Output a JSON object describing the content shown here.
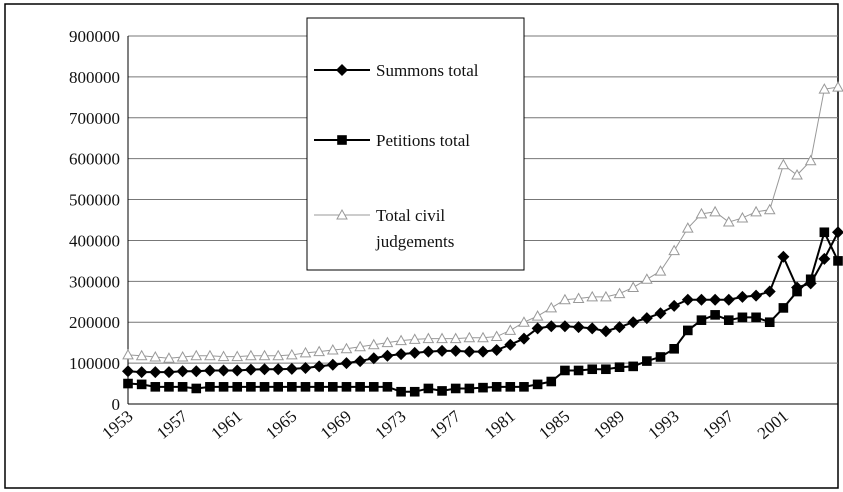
{
  "chart_data": {
    "type": "line",
    "categories": [
      "1953",
      null,
      null,
      null,
      "1957",
      null,
      null,
      null,
      "1961",
      null,
      null,
      null,
      "1965",
      null,
      null,
      null,
      "1969",
      null,
      null,
      null,
      "1973",
      null,
      null,
      null,
      "1977",
      null,
      null,
      null,
      "1981",
      null,
      null,
      null,
      "1985",
      null,
      null,
      null,
      "1989",
      null,
      null,
      null,
      "1993",
      null,
      null,
      null,
      "1997",
      null,
      null,
      null,
      "2001",
      null,
      null,
      null,
      null
    ],
    "series": [
      {
        "name": "Summons total",
        "color": "#000000",
        "marker": "diamond",
        "values": [
          80000,
          78000,
          78000,
          78000,
          80000,
          80000,
          82000,
          82000,
          82000,
          84000,
          85000,
          85000,
          86000,
          88000,
          92000,
          96000,
          100000,
          105000,
          112000,
          118000,
          122000,
          125000,
          128000,
          130000,
          130000,
          128000,
          128000,
          132000,
          145000,
          160000,
          185000,
          190000,
          190000,
          188000,
          185000,
          178000,
          188000,
          200000,
          210000,
          222000,
          240000,
          255000,
          255000,
          255000,
          255000,
          262000,
          265000,
          275000,
          360000,
          285000,
          295000,
          355000,
          420000
        ]
      },
      {
        "name": "Petitions total",
        "color": "#000000",
        "marker": "square",
        "values": [
          50000,
          48000,
          42000,
          42000,
          42000,
          38000,
          42000,
          42000,
          42000,
          42000,
          42000,
          42000,
          42000,
          42000,
          42000,
          42000,
          42000,
          42000,
          42000,
          42000,
          30000,
          30000,
          38000,
          32000,
          38000,
          38000,
          40000,
          42000,
          42000,
          42000,
          48000,
          55000,
          82000,
          82000,
          85000,
          85000,
          90000,
          92000,
          105000,
          115000,
          135000,
          180000,
          205000,
          218000,
          205000,
          212000,
          212000,
          200000,
          235000,
          275000,
          305000,
          420000,
          350000
        ]
      },
      {
        "name": "Total civil judgements",
        "color": "#999999",
        "marker": "triangle",
        "values": [
          120000,
          118000,
          115000,
          112000,
          115000,
          118000,
          118000,
          116000,
          116000,
          118000,
          118000,
          118000,
          120000,
          125000,
          128000,
          132000,
          135000,
          140000,
          145000,
          150000,
          155000,
          158000,
          160000,
          160000,
          160000,
          162000,
          162000,
          165000,
          180000,
          200000,
          215000,
          235000,
          255000,
          258000,
          262000,
          262000,
          270000,
          285000,
          305000,
          325000,
          375000,
          430000,
          465000,
          470000,
          445000,
          455000,
          470000,
          475000,
          585000,
          560000,
          595000,
          770000,
          775000
        ]
      }
    ],
    "ylim": [
      0,
      900000
    ],
    "yticks": [
      0,
      100000,
      200000,
      300000,
      400000,
      500000,
      600000,
      700000,
      800000,
      900000
    ],
    "grid": true
  }
}
